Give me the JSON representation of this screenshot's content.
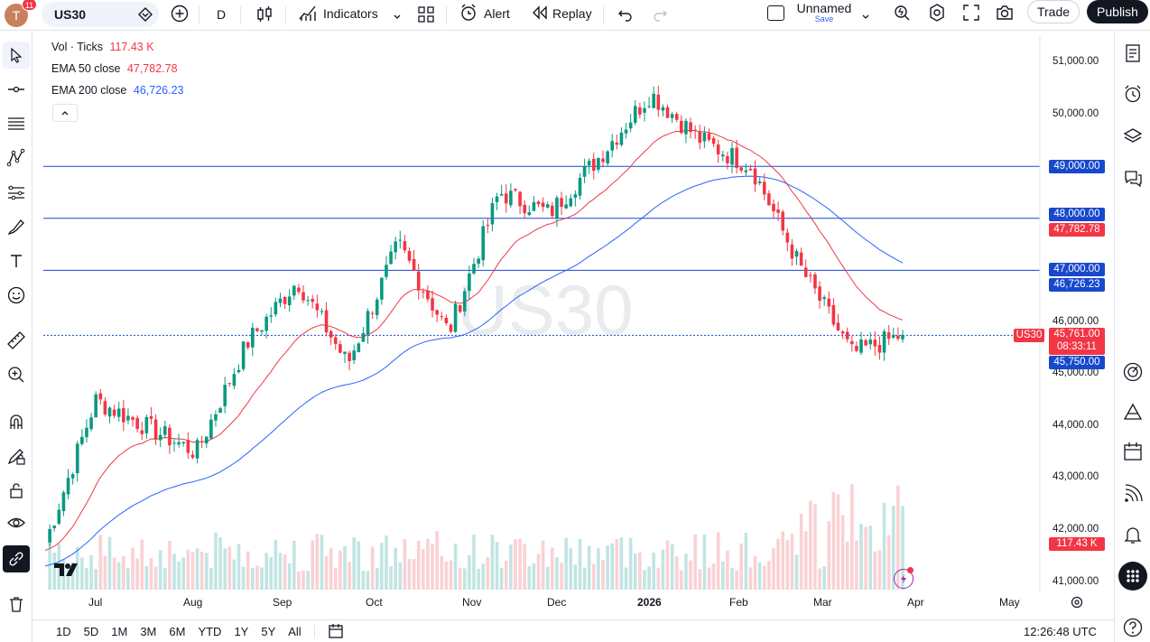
{
  "toolbar": {
    "avatar_letter": "T",
    "notifications": "11",
    "symbol": "US30",
    "interval": "D",
    "indicators": "Indicators",
    "alert": "Alert",
    "replay": "Replay",
    "layout_name": "Unnamed",
    "save": "Save",
    "trade": "Trade",
    "publish": "Publish"
  },
  "legend": {
    "vol_label": "Vol · Ticks",
    "vol_value": "117.43 K",
    "ema50_label": "EMA 50 close",
    "ema50_value": "47,782.78",
    "ema200_label": "EMA 200 close",
    "ema200_value": "46,726.23"
  },
  "watermark": "US30",
  "price_axis": [
    "51,000.00",
    "50,000.00",
    "46,000.00",
    "45,000.00",
    "44,000.00",
    "43,000.00",
    "42,000.00",
    "41,000.00"
  ],
  "price_tags": {
    "line1": "49,000.00",
    "line2": "48,000.00",
    "ema50": "47,782.78",
    "line3": "47,000.00",
    "ema200": "46,726.23",
    "symbol_tag": "US30",
    "last": "45,761.00",
    "countdown": "08:33:11",
    "line4": "45,750.00",
    "volume": "117.43 K"
  },
  "time_axis": [
    "Jul",
    "Aug",
    "Sep",
    "Oct",
    "Nov",
    "Dec",
    "2026",
    "Feb",
    "Mar",
    "Apr",
    "May"
  ],
  "timeframes": [
    "1D",
    "5D",
    "1M",
    "3M",
    "6M",
    "YTD",
    "1Y",
    "5Y",
    "All"
  ],
  "clock": "12:26:48 UTC",
  "colors": {
    "up": "#089981",
    "down": "#f23645",
    "ema50": "#f23645",
    "ema200": "#2962ff",
    "hline": "#1848cc",
    "accent": "#2962ff"
  },
  "chart_data": {
    "type": "candlestick",
    "symbol": "US30",
    "interval": "D",
    "x_axis_ticks": [
      "Jul",
      "Aug",
      "Sep",
      "Oct",
      "Nov",
      "Dec",
      "2026",
      "Feb",
      "Mar",
      "Apr",
      "May"
    ],
    "y_axis_ticks": [
      41000,
      42000,
      43000,
      44000,
      45000,
      46000,
      50000,
      51000
    ],
    "ylim": [
      40800,
      51300
    ],
    "horizontal_lines": [
      49000,
      48000,
      47000,
      45750
    ],
    "last_price": 45761,
    "ema50_last": 47782.78,
    "ema200_last": 46726.23,
    "volume_last": "117.43 K",
    "trend_anchors": [
      {
        "date": "Jun 20",
        "close": 41750
      },
      {
        "date": "Jul 1",
        "close": 44500
      },
      {
        "date": "Aug 1",
        "close": 44000
      },
      {
        "date": "Aug 1b",
        "close": 43500
      },
      {
        "date": "Sep 1",
        "close": 45600
      },
      {
        "date": "Oct 1",
        "close": 46800
      },
      {
        "date": "Oct 10",
        "close": 45200
      },
      {
        "date": "Nov 1",
        "close": 47500
      },
      {
        "date": "Nov 20",
        "close": 45800
      },
      {
        "date": "Dec 15",
        "close": 48500
      },
      {
        "date": "Jan 1",
        "close": 48100
      },
      {
        "date": "Jan 15",
        "close": 49200
      },
      {
        "date": "Feb 10",
        "close": 50400
      },
      {
        "date": "Feb 20",
        "close": 49500
      },
      {
        "date": "Mar 1",
        "close": 49000
      },
      {
        "date": "Mar 10",
        "close": 47000
      },
      {
        "date": "Mar 20",
        "close": 45400
      },
      {
        "date": "Mar 27",
        "close": 45761
      }
    ]
  }
}
